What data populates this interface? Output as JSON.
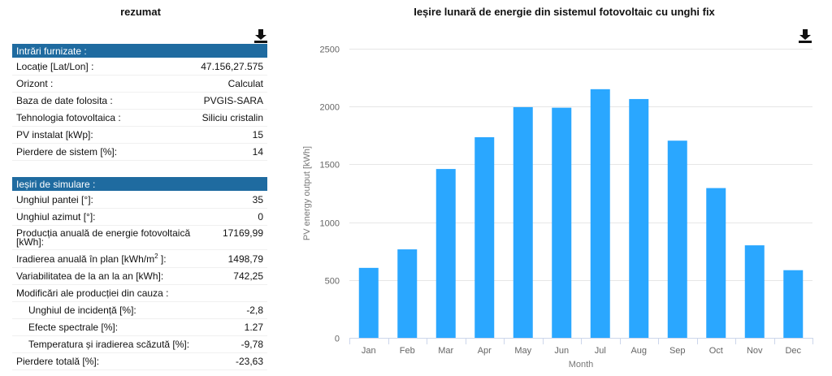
{
  "summary": {
    "title": "rezumat",
    "inputs_header": "Intrări furnizate :",
    "inputs": [
      {
        "label": "Locație [Lat/Lon] :",
        "value": "47.156,27.575"
      },
      {
        "label": "Orizont :",
        "value": "Calculat"
      },
      {
        "label": "Baza de date folosita :",
        "value": "PVGIS-SARA"
      },
      {
        "label": "Tehnologia fotovoltaica :",
        "value": "Siliciu cristalin"
      },
      {
        "label": "PV instalat [kWp]:",
        "value": "15"
      },
      {
        "label": "Pierdere de sistem [%]:",
        "value": "14"
      }
    ],
    "outputs_header": "Ieșiri de simulare :",
    "outputs": [
      {
        "label": "Unghiul pantei [°]:",
        "value": "35"
      },
      {
        "label": "Unghiul azimut [°]:",
        "value": "0"
      },
      {
        "label": "Producția anuală de energie fotovoltaică [kWh]:",
        "value": "17169,99"
      },
      {
        "label_prefix": "Iradierea anuală în plan [kWh/m",
        "label_sup": "2",
        "label_suffix": " ]:",
        "value": "1498,79"
      },
      {
        "label": "Variabilitatea de la an la an [kWh]:",
        "value": "742,25"
      },
      {
        "label": "Modificări ale producției din cauza :",
        "value": ""
      },
      {
        "label": "Unghiul de incidență [%]:",
        "value": "-2,8"
      },
      {
        "label": "Efecte spectrale [%]:",
        "value": "1.27"
      },
      {
        "label": "Temperatura și iradierea scăzută [%]:",
        "value": "-9,78"
      },
      {
        "label": "Pierdere totală [%]:",
        "value": "-23,63"
      }
    ]
  },
  "chart_title": "Ieșire lunară de energie din sistemul fotovoltaic cu unghi fix",
  "icons": {
    "download": "download-icon"
  },
  "colors": {
    "bar": "#2aa7ff",
    "header": "#1f6ba0"
  },
  "chart_data": {
    "type": "bar",
    "title": "Ieșire lunară de energie din sistemul fotovoltaic cu unghi fix",
    "xlabel": "Month",
    "ylabel": "PV energy output [kWh]",
    "categories": [
      "Jan",
      "Feb",
      "Mar",
      "Apr",
      "May",
      "Jun",
      "Jul",
      "Aug",
      "Sep",
      "Oct",
      "Nov",
      "Dec"
    ],
    "values": [
      605,
      765,
      1460,
      1735,
      1995,
      1990,
      2150,
      2065,
      1705,
      1295,
      800,
      585
    ],
    "ylim": [
      0,
      2500
    ],
    "yticks": [
      0,
      500,
      1000,
      1500,
      2000,
      2500
    ],
    "grid": true,
    "legend": "none"
  }
}
